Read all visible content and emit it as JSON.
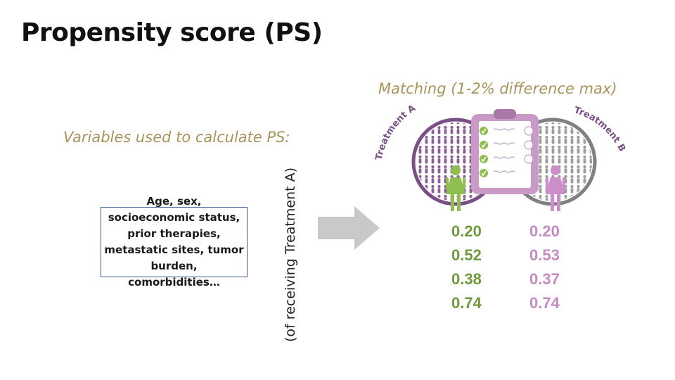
{
  "title": "Propensity score (PS)",
  "variables_heading": "Variables used to calculate PS:",
  "variables_box": "Age, sex, socioeconomic status, prior therapies, metastatic sites, tumor burden, comorbidities…",
  "rotated_label": "(of receiving Treatment A)",
  "matching_title": "Matching (1-2% difference max)",
  "treatment_a_label": "Treatment A",
  "treatment_b_label": "Treatment B",
  "treatment_a_scores": [
    "0.20",
    "0.52",
    "0.38",
    "0.74"
  ],
  "treatment_b_scores": [
    "0.20",
    "0.53",
    "0.37",
    "0.74"
  ],
  "colors": {
    "treatment_a": "#6f9a3c",
    "treatment_b": "#c38bbf",
    "accent_text": "#a8935a",
    "circle_a": "#7a4f86",
    "circle_b": "#808080"
  }
}
